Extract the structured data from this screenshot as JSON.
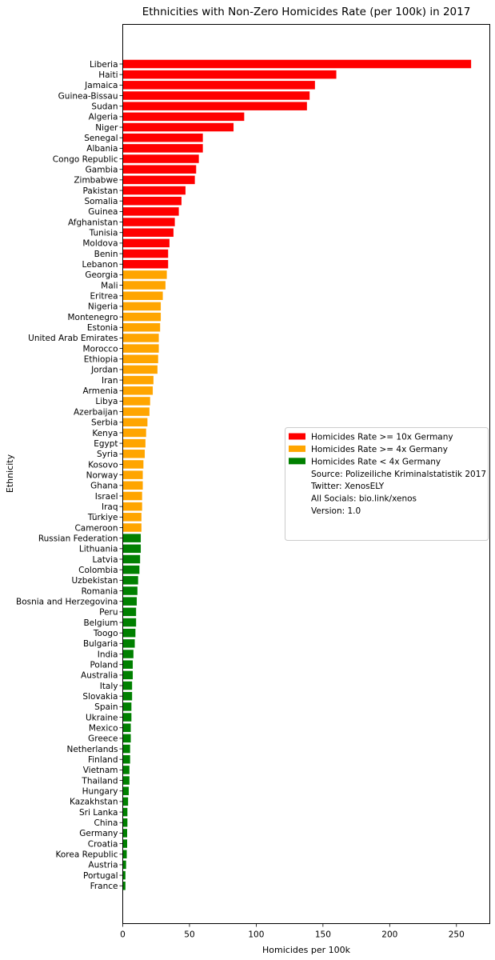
{
  "chart_data": {
    "type": "bar",
    "orientation": "horizontal",
    "title": "Ethnicities with Non-Zero Homicides Rate (per 100k) in 2017",
    "xlabel": "Homicides per 100k",
    "ylabel": "Ethnicity",
    "xlim": [
      0,
      275
    ],
    "xticks": [
      0,
      50,
      100,
      150,
      200,
      250
    ],
    "grid": false,
    "legend_position": "center-right",
    "colors": {
      "high": "#ff0000",
      "medium": "#ffa500",
      "low": "#008000"
    },
    "legend": [
      {
        "label": "Homicides Rate >= 10x Germany",
        "color": "#ff0000"
      },
      {
        "label": "Homicides Rate >= 4x Germany",
        "color": "#ffa500"
      },
      {
        "label": "Homicides Rate < 4x Germany",
        "color": "#008000"
      },
      {
        "label": "Source: Polizeiliche Kriminalstatistik 2017",
        "color": ""
      },
      {
        "label": "Twitter: XenosELY",
        "color": ""
      },
      {
        "label": "All Socials: bio.link/xenos",
        "color": ""
      },
      {
        "label": "Version: 1.0",
        "color": ""
      }
    ],
    "categories": [
      "Liberia",
      "Haiti",
      "Jamaica",
      "Guinea-Bissau",
      "Sudan",
      "Algeria",
      "Niger",
      "Senegal",
      "Albania",
      "Congo Republic",
      "Gambia",
      "Zimbabwe",
      "Pakistan",
      "Somalia",
      "Guinea",
      "Afghanistan",
      "Tunisia",
      "Moldova",
      "Benin",
      "Lebanon",
      "Georgia",
      "Mali",
      "Eritrea",
      "Nigeria",
      "Montenegro",
      "Estonia",
      "United Arab Emirates",
      "Morocco",
      "Ethiopia",
      "Jordan",
      "Iran",
      "Armenia",
      "Libya",
      "Azerbaijan",
      "Serbia",
      "Kenya",
      "Egypt",
      "Syria",
      "Kosovo",
      "Norway",
      "Ghana",
      "Israel",
      "Iraq",
      "Türkiye",
      "Cameroon",
      "Russian Federation",
      "Lithuania",
      "Latvia",
      "Colombia",
      "Uzbekistan",
      "Romania",
      "Bosnia and Herzegovina",
      "Peru",
      "Belgium",
      "Toogo",
      "Bulgaria",
      "India",
      "Poland",
      "Australia",
      "Italy",
      "Slovakia",
      "Spain",
      "Ukraine",
      "Mexico",
      "Greece",
      "Netherlands",
      "Finland",
      "Vietnam",
      "Thailand",
      "Hungary",
      "Kazakhstan",
      "Sri Lanka",
      "China",
      "Germany",
      "Croatia",
      "Korea Republic",
      "Austria",
      "Portugal",
      "France"
    ],
    "values": [
      261,
      160,
      144,
      140,
      138,
      91,
      83,
      60,
      60,
      57,
      55,
      54,
      47,
      44,
      42,
      39,
      38,
      35,
      34,
      34,
      33,
      32,
      30,
      28.5,
      28.5,
      28,
      27,
      27,
      26.5,
      26,
      23,
      22.5,
      20.5,
      20,
      18.5,
      17.5,
      17,
      16.5,
      15.5,
      15,
      15,
      14.5,
      14.5,
      14,
      14,
      13.5,
      13.5,
      13,
      12.5,
      11.5,
      11,
      10.5,
      10,
      10,
      9.5,
      9,
      8,
      7.5,
      7.5,
      7,
      7,
      6.5,
      6.5,
      6,
      6,
      5.5,
      5.5,
      5,
      5,
      4.5,
      4,
      3.5,
      3.5,
      3.3,
      3.3,
      3,
      2.5,
      2,
      2
    ],
    "levels": [
      "high",
      "high",
      "high",
      "high",
      "high",
      "high",
      "high",
      "high",
      "high",
      "high",
      "high",
      "high",
      "high",
      "high",
      "high",
      "high",
      "high",
      "high",
      "high",
      "high",
      "medium",
      "medium",
      "medium",
      "medium",
      "medium",
      "medium",
      "medium",
      "medium",
      "medium",
      "medium",
      "medium",
      "medium",
      "medium",
      "medium",
      "medium",
      "medium",
      "medium",
      "medium",
      "medium",
      "medium",
      "medium",
      "medium",
      "medium",
      "medium",
      "medium",
      "low",
      "low",
      "low",
      "low",
      "low",
      "low",
      "low",
      "low",
      "low",
      "low",
      "low",
      "low",
      "low",
      "low",
      "low",
      "low",
      "low",
      "low",
      "low",
      "low",
      "low",
      "low",
      "low",
      "low",
      "low",
      "low",
      "low",
      "low",
      "low",
      "low",
      "low",
      "low",
      "low",
      "low"
    ]
  }
}
